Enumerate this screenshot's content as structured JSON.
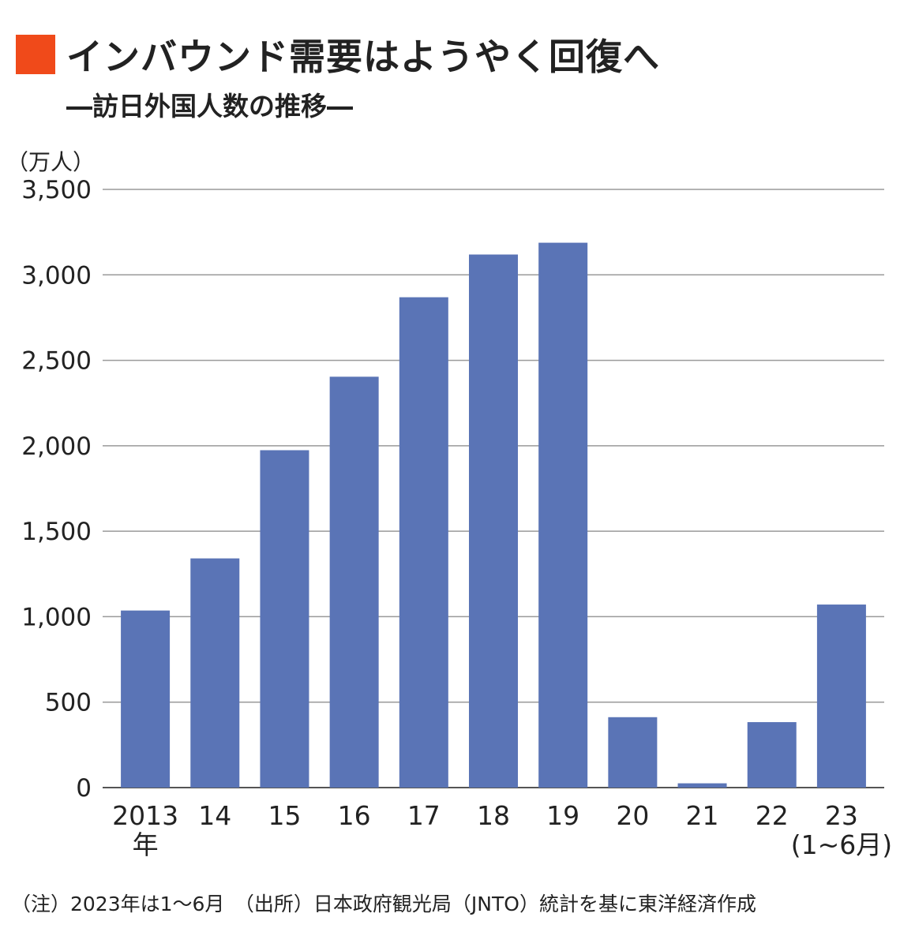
{
  "header": {
    "title": "インバウンド需要はようやく回復へ",
    "subtitle": "―訪日外国人数の推移―"
  },
  "unit_label": "（万人）",
  "footnote": "（注）2023年は1～6月　（出所）日本政府観光局（JNTO）統計を基に東洋経済作成",
  "colors": {
    "bar": "#5a74b6",
    "accent": "#f04a1a",
    "grid": "#9a9a9a"
  },
  "chart_data": {
    "type": "bar",
    "title": "インバウンド需要はようやく回復へ",
    "subtitle": "―訪日外国人数の推移―",
    "ylabel": "（万人）",
    "ylim": [
      0,
      3500
    ],
    "yticks": [
      0,
      500,
      1000,
      1500,
      2000,
      2500,
      3000,
      3500
    ],
    "ytick_labels": [
      "0",
      "500",
      "1,000",
      "1,500",
      "2,000",
      "2,500",
      "3,000",
      "3,500"
    ],
    "grid": true,
    "categories": [
      "2013",
      "14",
      "15",
      "16",
      "17",
      "18",
      "19",
      "20",
      "21",
      "22",
      "23"
    ],
    "category_sublabels": [
      "年",
      "",
      "",
      "",
      "",
      "",
      "",
      "",
      "",
      "",
      "(1~6月)"
    ],
    "values": [
      1036,
      1341,
      1974,
      2404,
      2869,
      3119,
      3188,
      412,
      25,
      383,
      1071
    ]
  }
}
